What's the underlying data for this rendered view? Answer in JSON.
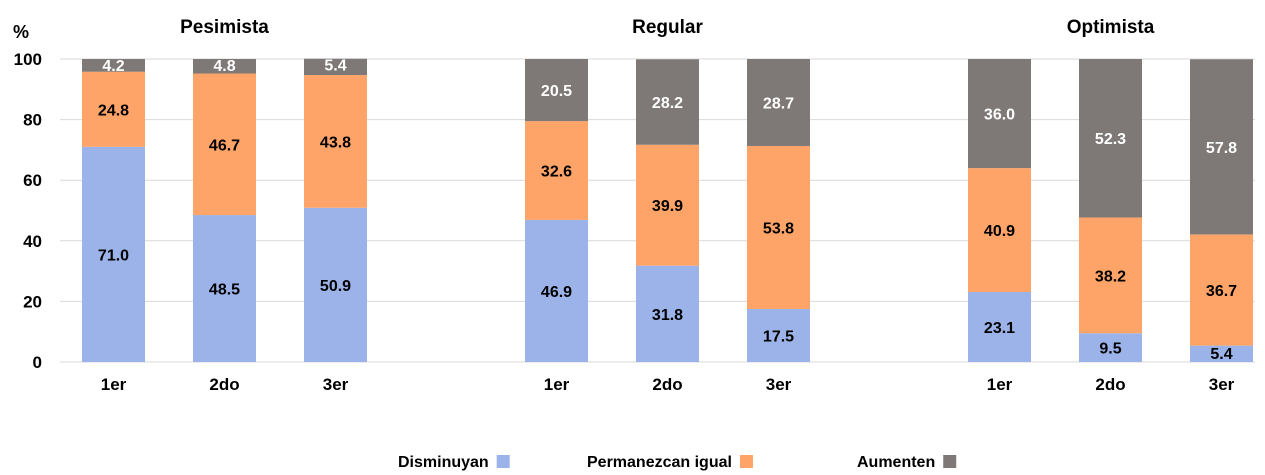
{
  "chart_data": {
    "type": "bar",
    "stacked": true,
    "ylabel": "%",
    "ylim": [
      0,
      100
    ],
    "yticks": [
      0,
      20,
      40,
      60,
      80,
      100
    ],
    "grid": true,
    "legend_position": "bottom",
    "legend": [
      {
        "name": "Disminuyan",
        "color": "#9BB3E8"
      },
      {
        "name": "Permanezcan igual",
        "color": "#FFA468"
      },
      {
        "name": "Aumenten",
        "color": "#7E7876"
      }
    ],
    "panels": [
      {
        "title": "Pesimista",
        "categories": [
          "1er",
          "2do",
          "3er"
        ],
        "series": [
          {
            "name": "Disminuyan",
            "values": [
              71.0,
              48.5,
              50.9
            ]
          },
          {
            "name": "Permanezcan igual",
            "values": [
              24.8,
              46.7,
              43.8
            ]
          },
          {
            "name": "Aumenten",
            "values": [
              4.2,
              4.8,
              5.4
            ]
          }
        ]
      },
      {
        "title": "Regular",
        "categories": [
          "1er",
          "2do",
          "3er"
        ],
        "series": [
          {
            "name": "Disminuyan",
            "values": [
              46.9,
              31.8,
              17.5
            ]
          },
          {
            "name": "Permanezcan igual",
            "values": [
              32.6,
              39.9,
              53.8
            ]
          },
          {
            "name": "Aumenten",
            "values": [
              20.5,
              28.2,
              28.7
            ]
          }
        ]
      },
      {
        "title": "Optimista",
        "categories": [
          "1er",
          "2do",
          "3er"
        ],
        "series": [
          {
            "name": "Disminuyan",
            "values": [
              23.1,
              9.5,
              5.4
            ]
          },
          {
            "name": "Permanezcan igual",
            "values": [
              40.9,
              38.2,
              36.7
            ]
          },
          {
            "name": "Aumenten",
            "values": [
              36.0,
              52.3,
              57.8
            ]
          }
        ]
      }
    ]
  }
}
